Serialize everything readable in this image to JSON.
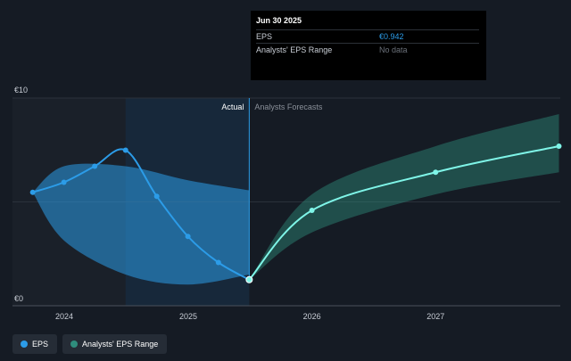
{
  "colors": {
    "background": "#151b24",
    "eps": "#2c9ce8",
    "range": "#2f8d7d",
    "forecast_line": "#7ff5e8",
    "highlight": "#17283a"
  },
  "tooltip": {
    "title": "Jun 30 2025",
    "rows": [
      {
        "label": "EPS",
        "value": "€0.942"
      },
      {
        "label": "Analysts' EPS Range",
        "value": "No data"
      }
    ]
  },
  "legend": [
    {
      "label": "EPS",
      "color": "#2c9ce8"
    },
    {
      "label": "Analysts' EPS Range",
      "color": "#2f8d7d"
    }
  ],
  "chart_data": {
    "type": "line",
    "y_labels": [
      "€10",
      "€0"
    ],
    "ylim": [
      0,
      10
    ],
    "x_ticks": [
      "2024",
      "2025",
      "2026",
      "2027"
    ],
    "section_labels": {
      "actual": "Actual",
      "forecast": "Analysts Forecasts"
    },
    "split_date": "2025-06-30",
    "series": [
      {
        "name": "EPS",
        "role": "actual",
        "points": [
          {
            "x": "2023-09-30",
            "y": 5.3
          },
          {
            "x": "2023-12-31",
            "y": 5.8
          },
          {
            "x": "2024-03-31",
            "y": 6.6
          },
          {
            "x": "2024-06-30",
            "y": 7.4
          },
          {
            "x": "2024-09-30",
            "y": 5.1
          },
          {
            "x": "2024-12-31",
            "y": 3.1
          },
          {
            "x": "2025-03-31",
            "y": 1.8
          },
          {
            "x": "2025-06-30",
            "y": 0.942
          }
        ]
      },
      {
        "name": "Analysts' EPS Range",
        "role": "forecast",
        "points": [
          {
            "x": "2025-06-30",
            "y": 0.942
          },
          {
            "x": "2026-01-01",
            "y": 4.4
          },
          {
            "x": "2027-01-01",
            "y": 6.3
          },
          {
            "x": "2027-12-31",
            "y": 7.6
          }
        ],
        "range_low": [
          0.942,
          3.3,
          5.2,
          6.3
        ],
        "range_high": [
          0.942,
          5.2,
          7.6,
          9.2
        ]
      }
    ],
    "actual_range_band": {
      "x": [
        "2023-09-30",
        "2023-12-31",
        "2024-06-30",
        "2024-12-31",
        "2025-06-30"
      ],
      "high": [
        5.3,
        6.6,
        6.6,
        5.9,
        5.4
      ],
      "low": [
        5.3,
        2.9,
        1.2,
        0.7,
        1.2
      ]
    }
  }
}
